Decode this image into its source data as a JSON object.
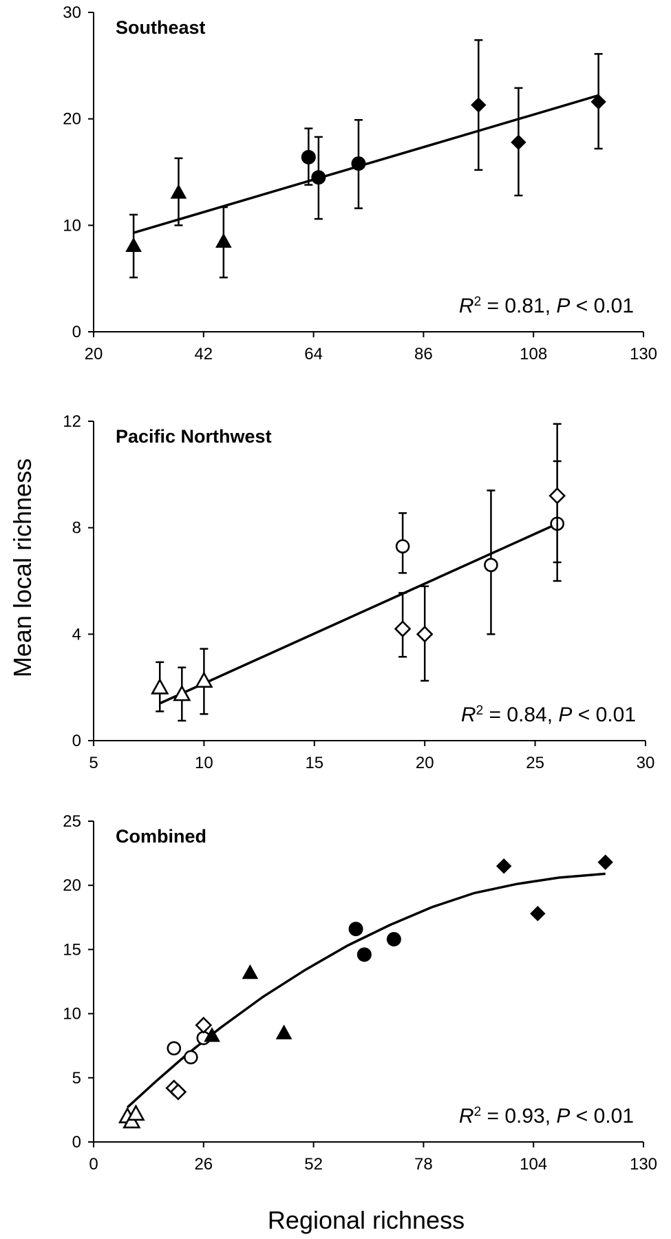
{
  "figure": {
    "ylabel": "Mean local richness",
    "xlabel": "Regional richness"
  },
  "chart_data": [
    {
      "type": "scatter",
      "title": "Southeast",
      "annotation": {
        "r2_label": "R",
        "r2_sup": "2",
        "r2_value": " = 0.81, ",
        "p_label": "P",
        "p_value": " < 0.01"
      },
      "xlim": [
        20,
        130
      ],
      "ylim": [
        0,
        30
      ],
      "xticks": [
        "20",
        "42",
        "64",
        "86",
        "108",
        "130"
      ],
      "yticks": [
        "0",
        "10",
        "20",
        "30"
      ],
      "points": [
        {
          "x": 28,
          "y": 8.1,
          "err_low": 5.1,
          "err_high": 11.0,
          "marker": "triangle-filled"
        },
        {
          "x": 37,
          "y": 13.1,
          "err_low": 10.0,
          "err_high": 16.3,
          "marker": "triangle-filled"
        },
        {
          "x": 46,
          "y": 8.5,
          "err_low": 5.1,
          "err_high": 11.7,
          "marker": "triangle-filled"
        },
        {
          "x": 63,
          "y": 16.4,
          "err_low": 13.8,
          "err_high": 19.1,
          "marker": "circle-filled"
        },
        {
          "x": 65,
          "y": 14.5,
          "err_low": 10.6,
          "err_high": 18.3,
          "marker": "circle-filled"
        },
        {
          "x": 73,
          "y": 15.8,
          "err_low": 11.6,
          "err_high": 19.9,
          "marker": "circle-filled"
        },
        {
          "x": 97,
          "y": 21.3,
          "err_low": 15.2,
          "err_high": 27.4,
          "marker": "diamond-filled"
        },
        {
          "x": 105,
          "y": 17.8,
          "err_low": 12.8,
          "err_high": 22.9,
          "marker": "diamond-filled"
        },
        {
          "x": 121,
          "y": 21.6,
          "err_low": 17.2,
          "err_high": 26.1,
          "marker": "diamond-filled"
        }
      ],
      "fit": {
        "kind": "linear",
        "x": [
          28,
          121
        ],
        "y": [
          9.3,
          22.2
        ]
      }
    },
    {
      "type": "scatter",
      "title": "Pacific Northwest",
      "annotation": {
        "r2_label": "R",
        "r2_sup": "2",
        "r2_value": " = 0.84, ",
        "p_label": "P",
        "p_value": " < 0.01"
      },
      "xlim": [
        5,
        30
      ],
      "ylim": [
        0,
        12
      ],
      "xticks": [
        "5",
        "10",
        "15",
        "20",
        "25",
        "30"
      ],
      "yticks": [
        "0",
        "4",
        "8",
        "12"
      ],
      "points": [
        {
          "x": 8,
          "y": 2.0,
          "err_low": 1.1,
          "err_high": 2.95,
          "marker": "triangle-open"
        },
        {
          "x": 9,
          "y": 1.75,
          "err_low": 0.75,
          "err_high": 2.75,
          "marker": "triangle-open"
        },
        {
          "x": 10,
          "y": 2.25,
          "err_low": 1.0,
          "err_high": 3.45,
          "marker": "triangle-open"
        },
        {
          "x": 19,
          "y": 7.3,
          "err_low": 6.3,
          "err_high": 8.55,
          "marker": "circle-open"
        },
        {
          "x": 19,
          "y": 4.2,
          "err_low": 3.15,
          "err_high": 5.55,
          "marker": "diamond-open"
        },
        {
          "x": 20,
          "y": 4.0,
          "err_low": 2.25,
          "err_high": 5.8,
          "marker": "diamond-open"
        },
        {
          "x": 23,
          "y": 6.6,
          "err_low": 4.0,
          "err_high": 9.4,
          "marker": "circle-open"
        },
        {
          "x": 26,
          "y": 8.15,
          "err_low": 6.0,
          "err_high": 10.5,
          "marker": "circle-open"
        },
        {
          "x": 26,
          "y": 9.2,
          "err_low": 6.7,
          "err_high": 11.9,
          "marker": "diamond-open"
        }
      ],
      "fit": {
        "kind": "linear",
        "x": [
          8,
          26
        ],
        "y": [
          1.4,
          8.15
        ]
      }
    },
    {
      "type": "scatter",
      "title": "Combined",
      "annotation": {
        "r2_label": "R",
        "r2_sup": "2",
        "r2_value": " = 0.93, ",
        "p_label": "P",
        "p_value": " < 0.01"
      },
      "xlim": [
        0,
        130
      ],
      "ylim": [
        0,
        25
      ],
      "xticks": [
        "0",
        "26",
        "52",
        "78",
        "104",
        "130"
      ],
      "yticks": [
        "0",
        "5",
        "10",
        "15",
        "20",
        "25"
      ],
      "points": [
        {
          "x": 8,
          "y": 2.0,
          "marker": "triangle-open"
        },
        {
          "x": 9,
          "y": 1.6,
          "marker": "triangle-open"
        },
        {
          "x": 10,
          "y": 2.2,
          "marker": "triangle-open"
        },
        {
          "x": 19,
          "y": 7.3,
          "marker": "circle-open"
        },
        {
          "x": 19,
          "y": 4.2,
          "marker": "diamond-open"
        },
        {
          "x": 20,
          "y": 3.9,
          "marker": "diamond-open"
        },
        {
          "x": 23,
          "y": 6.6,
          "marker": "circle-open"
        },
        {
          "x": 26,
          "y": 8.1,
          "marker": "circle-open"
        },
        {
          "x": 26,
          "y": 9.1,
          "marker": "diamond-open"
        },
        {
          "x": 28,
          "y": 8.3,
          "marker": "triangle-filled"
        },
        {
          "x": 37,
          "y": 13.2,
          "marker": "triangle-filled"
        },
        {
          "x": 45,
          "y": 8.5,
          "marker": "triangle-filled"
        },
        {
          "x": 62,
          "y": 16.6,
          "marker": "circle-filled"
        },
        {
          "x": 64,
          "y": 14.6,
          "marker": "circle-filled"
        },
        {
          "x": 71,
          "y": 15.8,
          "marker": "circle-filled"
        },
        {
          "x": 97,
          "y": 21.5,
          "marker": "diamond-filled"
        },
        {
          "x": 105,
          "y": 17.8,
          "marker": "diamond-filled"
        },
        {
          "x": 121,
          "y": 21.8,
          "marker": "diamond-filled"
        }
      ],
      "fit": {
        "kind": "quadratic",
        "x": [
          8,
          15,
          22,
          30,
          40,
          50,
          60,
          70,
          80,
          90,
          100,
          110,
          121
        ],
        "y": [
          2.7,
          4.8,
          6.8,
          8.9,
          11.3,
          13.4,
          15.3,
          16.9,
          18.3,
          19.4,
          20.1,
          20.6,
          20.9
        ]
      }
    }
  ]
}
